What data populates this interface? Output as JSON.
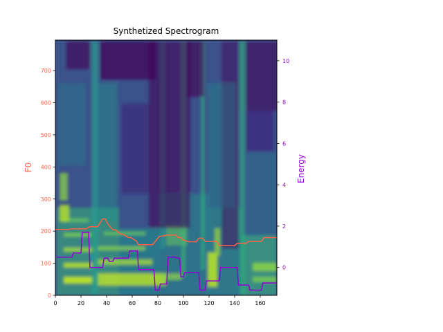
{
  "chart_data": {
    "type": "line",
    "title": "Synthetized Spectrogram",
    "background": "heatmap",
    "colormap": "viridis",
    "x_ticks": [
      0,
      20,
      40,
      60,
      80,
      100,
      120,
      140,
      160
    ],
    "xlim": [
      0,
      173
    ],
    "left_axis": {
      "label": "F0",
      "color": "#ff6347",
      "ylim": [
        0,
        795
      ],
      "ticks": [
        0,
        100,
        200,
        300,
        400,
        500,
        600,
        700
      ]
    },
    "right_axis": {
      "label": "Energy",
      "color": "#9400d3",
      "ylim": [
        -1.35,
        11
      ],
      "ticks": [
        0,
        2,
        4,
        6,
        8,
        10
      ]
    },
    "series": [
      {
        "name": "F0",
        "axis": "left",
        "color": "#ff6347",
        "x": [
          0,
          10,
          13,
          24,
          27,
          33,
          37,
          39,
          41,
          45,
          47,
          51,
          53,
          57,
          59,
          63,
          65,
          76,
          81,
          88,
          94,
          96,
          98,
          100,
          104,
          110,
          112,
          115,
          117,
          126,
          128,
          140,
          142,
          149,
          151,
          161,
          163,
          173
        ],
        "y": [
          205,
          205,
          207,
          207,
          214,
          214,
          238,
          238,
          222,
          204,
          204,
          190,
          190,
          180,
          180,
          170,
          158,
          158,
          183,
          188,
          188,
          180,
          180,
          172,
          167,
          167,
          178,
          178,
          168,
          168,
          155,
          155,
          162,
          162,
          168,
          168,
          180,
          180
        ]
      },
      {
        "name": "Energy",
        "axis": "right",
        "color": "#9400d3",
        "x": [
          0,
          13,
          14,
          20,
          21,
          26,
          27,
          37,
          38,
          41,
          42,
          45,
          46,
          57,
          58,
          64,
          65,
          77,
          78,
          81,
          82,
          87,
          88,
          94,
          95,
          97,
          98,
          100,
          101,
          112,
          113,
          117,
          118,
          128,
          129,
          142,
          143,
          151,
          152,
          161,
          162,
          173
        ],
        "y": [
          0.5,
          0.5,
          0.7,
          0.7,
          1.7,
          1.7,
          0,
          0,
          0.45,
          0.45,
          0.3,
          0.3,
          0.45,
          0.45,
          0.8,
          0.8,
          -0.1,
          -0.1,
          -1.1,
          -1.1,
          -0.8,
          -0.8,
          0.5,
          0.5,
          0.45,
          0.45,
          -0.45,
          -0.45,
          -0.25,
          -0.25,
          -1.1,
          -1.1,
          -0.65,
          -0.65,
          0,
          0,
          -0.85,
          -0.85,
          -1.1,
          -1.1,
          -0.75,
          -0.75
        ]
      }
    ]
  }
}
